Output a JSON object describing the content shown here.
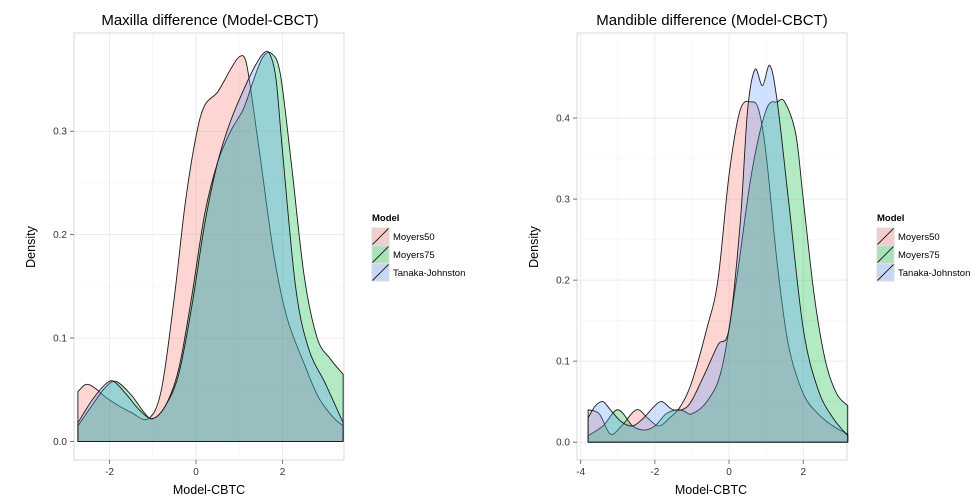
{
  "chart_data": [
    {
      "type": "area",
      "title": "Maxilla difference (Model-CBCT)",
      "xlabel": "Model-CBTC",
      "ylabel": "Density",
      "xlim": [
        -2.82,
        3.42
      ],
      "ylim": [
        -0.018,
        0.395
      ],
      "xticks": [
        -2,
        0,
        2
      ],
      "yticks": [
        0.0,
        0.1,
        0.2,
        0.3
      ],
      "ytick_labels": [
        "0.0",
        "0.1",
        "0.2",
        "0.3"
      ],
      "grid": true,
      "legend": {
        "title": "Model",
        "position": "right",
        "entries": [
          "Moyers50",
          "Moyers75",
          "Tanaka-Johnston"
        ]
      },
      "series": [
        {
          "name": "Moyers50",
          "color": "#F8766D",
          "x": [
            -2.73,
            -2.55,
            -2.35,
            -2.0,
            -1.5,
            -1.1,
            -0.8,
            -0.5,
            -0.25,
            0.0,
            0.2,
            0.5,
            0.8,
            1.0,
            1.15,
            1.3,
            1.5,
            1.8,
            2.1,
            2.5,
            2.8,
            3.0,
            3.2,
            3.4
          ],
          "y": [
            0.048,
            0.055,
            0.052,
            0.04,
            0.028,
            0.022,
            0.05,
            0.14,
            0.23,
            0.295,
            0.325,
            0.338,
            0.36,
            0.372,
            0.368,
            0.33,
            0.27,
            0.18,
            0.12,
            0.075,
            0.045,
            0.032,
            0.022,
            0.015
          ]
        },
        {
          "name": "Moyers75",
          "color": "#00BA38",
          "x": [
            -2.73,
            -2.4,
            -2.1,
            -1.85,
            -1.5,
            -1.2,
            -1.0,
            -0.7,
            -0.4,
            -0.1,
            0.2,
            0.5,
            0.8,
            1.1,
            1.35,
            1.55,
            1.75,
            1.95,
            2.2,
            2.5,
            2.8,
            3.1,
            3.4
          ],
          "y": [
            0.015,
            0.035,
            0.052,
            0.058,
            0.045,
            0.028,
            0.022,
            0.035,
            0.07,
            0.14,
            0.22,
            0.27,
            0.3,
            0.322,
            0.352,
            0.372,
            0.375,
            0.355,
            0.27,
            0.16,
            0.1,
            0.08,
            0.065
          ]
        },
        {
          "name": "Tanaka-Johnston",
          "color": "#619CFF",
          "x": [
            -2.73,
            -2.4,
            -2.1,
            -1.9,
            -1.6,
            -1.3,
            -1.0,
            -0.7,
            -0.4,
            -0.1,
            0.2,
            0.5,
            0.8,
            1.1,
            1.35,
            1.55,
            1.7,
            1.85,
            2.0,
            2.3,
            2.6,
            3.0,
            3.4
          ],
          "y": [
            0.018,
            0.04,
            0.055,
            0.058,
            0.045,
            0.03,
            0.022,
            0.035,
            0.065,
            0.13,
            0.21,
            0.27,
            0.31,
            0.34,
            0.362,
            0.375,
            0.375,
            0.35,
            0.28,
            0.15,
            0.09,
            0.055,
            0.018
          ]
        }
      ]
    },
    {
      "type": "area",
      "title": "Mandible difference (Model-CBCT)",
      "xlabel": "Model-CBTC",
      "ylabel": "Density",
      "xlim": [
        -4.1,
        3.18
      ],
      "ylim": [
        -0.022,
        0.505
      ],
      "xticks": [
        -4,
        -2,
        0,
        2
      ],
      "yticks": [
        0.0,
        0.1,
        0.2,
        0.3,
        0.4
      ],
      "ytick_labels": [
        "0.0",
        "0.1",
        "0.2",
        "0.3",
        "0.4"
      ],
      "grid": true,
      "legend": {
        "title": "Model",
        "position": "right",
        "entries": [
          "Moyers50",
          "Moyers75",
          "Tanaka-Johnston"
        ]
      },
      "series": [
        {
          "name": "Moyers50",
          "color": "#F8766D",
          "x": [
            -3.8,
            -3.5,
            -3.2,
            -2.9,
            -2.5,
            -2.2,
            -1.9,
            -1.6,
            -1.3,
            -1.0,
            -0.6,
            -0.3,
            0.0,
            0.3,
            0.6,
            0.8,
            1.0,
            1.3,
            1.6,
            2.0,
            2.4,
            2.8,
            3.2
          ],
          "y": [
            0.04,
            0.035,
            0.01,
            0.02,
            0.04,
            0.03,
            0.02,
            0.03,
            0.045,
            0.075,
            0.14,
            0.2,
            0.33,
            0.41,
            0.42,
            0.41,
            0.355,
            0.22,
            0.12,
            0.06,
            0.035,
            0.02,
            0.01
          ]
        },
        {
          "name": "Moyers75",
          "color": "#00BA38",
          "x": [
            -3.8,
            -3.4,
            -3.0,
            -2.6,
            -2.3,
            -2.0,
            -1.7,
            -1.4,
            -1.2,
            -1.0,
            -0.6,
            -0.2,
            0.2,
            0.6,
            1.0,
            1.3,
            1.5,
            1.8,
            2.0,
            2.3,
            2.6,
            2.9,
            3.2
          ],
          "y": [
            0.008,
            0.02,
            0.04,
            0.02,
            0.015,
            0.02,
            0.035,
            0.04,
            0.038,
            0.035,
            0.05,
            0.09,
            0.2,
            0.33,
            0.41,
            0.42,
            0.42,
            0.38,
            0.3,
            0.18,
            0.1,
            0.06,
            0.045
          ]
        },
        {
          "name": "Tanaka-Johnston",
          "color": "#619CFF",
          "x": [
            -3.8,
            -3.6,
            -3.4,
            -3.2,
            -2.9,
            -2.6,
            -2.3,
            -2.0,
            -1.8,
            -1.5,
            -1.1,
            -0.7,
            -0.3,
            0.0,
            0.3,
            0.5,
            0.7,
            0.9,
            1.1,
            1.3,
            1.6,
            2.0,
            2.4,
            2.8,
            3.2
          ],
          "y": [
            0.03,
            0.045,
            0.05,
            0.04,
            0.025,
            0.02,
            0.03,
            0.045,
            0.05,
            0.04,
            0.045,
            0.08,
            0.12,
            0.14,
            0.27,
            0.41,
            0.46,
            0.44,
            0.465,
            0.42,
            0.3,
            0.14,
            0.065,
            0.03,
            0.008
          ]
        }
      ]
    }
  ]
}
